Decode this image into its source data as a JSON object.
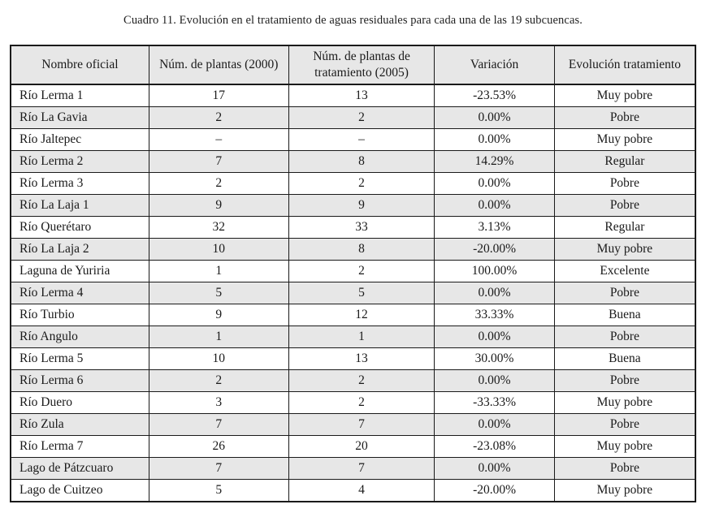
{
  "title": "Cuadro 11. Evolución en el tratamiento de aguas residuales para cada una de las 19 subcuencas.",
  "colors": {
    "page_background": "#ffffff",
    "header_background": "#e7e7e7",
    "row_alt_background": "#e7e7e7",
    "border": "#1a1a1a",
    "text": "#1a1a1a"
  },
  "table": {
    "columns": [
      "Nombre oficial",
      "Núm. de plantas (2000)",
      "Núm. de plantas de tratamiento (2005)",
      "Variación",
      "Evolución tratamiento"
    ],
    "rows": [
      {
        "cells": [
          "Río Lerma 1",
          "17",
          "13",
          "-23.53%",
          "Muy pobre"
        ]
      },
      {
        "cells": [
          "Río La Gavia",
          "2",
          "2",
          "0.00%",
          "Pobre"
        ]
      },
      {
        "cells": [
          "Río Jaltepec",
          "–",
          "–",
          "0.00%",
          "Muy pobre"
        ]
      },
      {
        "cells": [
          "Río Lerma 2",
          "7",
          "8",
          "14.29%",
          "Regular"
        ]
      },
      {
        "cells": [
          "Río Lerma 3",
          "2",
          "2",
          "0.00%",
          "Pobre"
        ]
      },
      {
        "cells": [
          "Río La Laja 1",
          "9",
          "9",
          "0.00%",
          "Pobre"
        ]
      },
      {
        "cells": [
          "Río Querétaro",
          "32",
          "33",
          "3.13%",
          "Regular"
        ]
      },
      {
        "cells": [
          "Río La Laja 2",
          "10",
          "8",
          "-20.00%",
          "Muy pobre"
        ]
      },
      {
        "cells": [
          "Laguna de Yuriria",
          "1",
          "2",
          "100.00%",
          "Excelente"
        ]
      },
      {
        "cells": [
          "Río Lerma 4",
          "5",
          "5",
          "0.00%",
          "Pobre"
        ]
      },
      {
        "cells": [
          "Río Turbio",
          "9",
          "12",
          "33.33%",
          "Buena"
        ]
      },
      {
        "cells": [
          "Río Angulo",
          "1",
          "1",
          "0.00%",
          "Pobre"
        ]
      },
      {
        "cells": [
          "Río Lerma 5",
          "10",
          "13",
          "30.00%",
          "Buena"
        ]
      },
      {
        "cells": [
          "Río Lerma 6",
          "2",
          "2",
          "0.00%",
          "Pobre"
        ]
      },
      {
        "cells": [
          "Río Duero",
          "3",
          "2",
          "-33.33%",
          "Muy pobre"
        ]
      },
      {
        "cells": [
          "Río Zula",
          "7",
          "7",
          "0.00%",
          "Pobre"
        ]
      },
      {
        "cells": [
          "Río Lerma 7",
          "26",
          "20",
          "-23.08%",
          "Muy pobre"
        ]
      },
      {
        "cells": [
          "Lago de Pátzcuaro",
          "7",
          "7",
          "0.00%",
          "Pobre"
        ]
      },
      {
        "cells": [
          "Lago de Cuitzeo",
          "5",
          "4",
          "-20.00%",
          "Muy pobre"
        ]
      }
    ]
  }
}
